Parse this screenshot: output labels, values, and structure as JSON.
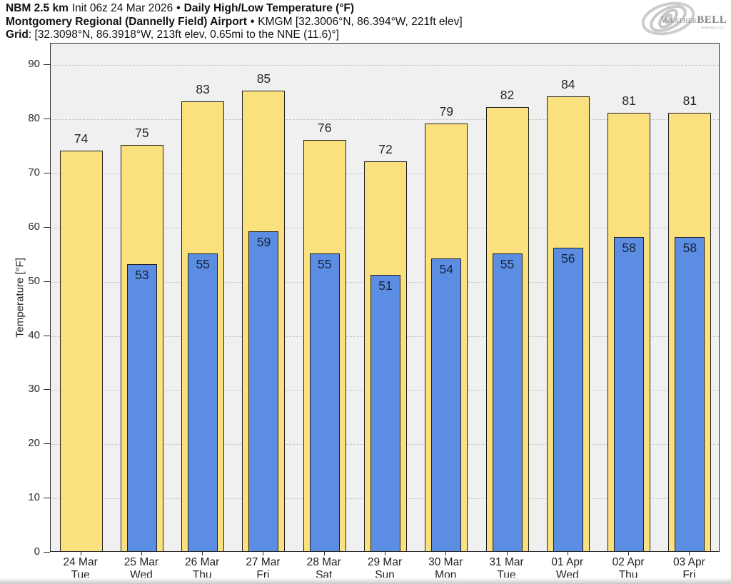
{
  "header": {
    "line1": {
      "model": "NBM 2.5 km",
      "init": "Init 06z 24 Mar 2026",
      "bullet": "•",
      "title": "Daily High/Low Temperature (°F)"
    },
    "line2": {
      "station": "Montgomery Regional (Dannelly Field) Airport",
      "bullet": "•",
      "details": "KMGM [32.3006°N, 86.394°W, 221ft elev]"
    },
    "line3": {
      "label": "Grid",
      "details": ": [32.3098°N, 86.3918°W, 213ft elev, 0.65mi to the NNE (11.6)°]"
    }
  },
  "logo": {
    "brand_weather": "Weather",
    "brand_bell": "BELL",
    "sub": "Analytics LLC"
  },
  "chart_data": {
    "type": "bar",
    "title": "NBM 2.5 km Init 06z 24 Mar 2026 • Daily High/Low Temperature (°F)",
    "subtitle": "Montgomery Regional (Dannelly Field) Airport • KMGM",
    "ylabel": "Temperature [°F]",
    "ylim": [
      0,
      94
    ],
    "yticks": [
      0,
      10,
      20,
      30,
      40,
      50,
      60,
      70,
      80,
      90
    ],
    "grid": "horizontal dashed",
    "legend_position": "none",
    "categories": [
      {
        "date": "24 Mar",
        "day": "Tue"
      },
      {
        "date": "25 Mar",
        "day": "Wed"
      },
      {
        "date": "26 Mar",
        "day": "Thu"
      },
      {
        "date": "27 Mar",
        "day": "Fri"
      },
      {
        "date": "28 Mar",
        "day": "Sat"
      },
      {
        "date": "29 Mar",
        "day": "Sun"
      },
      {
        "date": "30 Mar",
        "day": "Mon"
      },
      {
        "date": "31 Mar",
        "day": "Tue"
      },
      {
        "date": "01 Apr",
        "day": "Wed"
      },
      {
        "date": "02 Apr",
        "day": "Thu"
      },
      {
        "date": "03 Apr",
        "day": "Fri"
      }
    ],
    "series": [
      {
        "name": "Daily High",
        "color": "#fae17d",
        "values": [
          74,
          75,
          83,
          85,
          76,
          72,
          79,
          82,
          84,
          81,
          81
        ]
      },
      {
        "name": "Daily Low",
        "color": "#5b8de3",
        "values": [
          null,
          53,
          55,
          59,
          55,
          51,
          54,
          55,
          56,
          58,
          58
        ]
      }
    ],
    "colors": {
      "plot_background": "#f0f0f0",
      "gridline": "#c6c6c6",
      "bar_outline": "#1f1f1f",
      "high_label_text": "#262626",
      "low_label_text": "#19233d"
    }
  }
}
